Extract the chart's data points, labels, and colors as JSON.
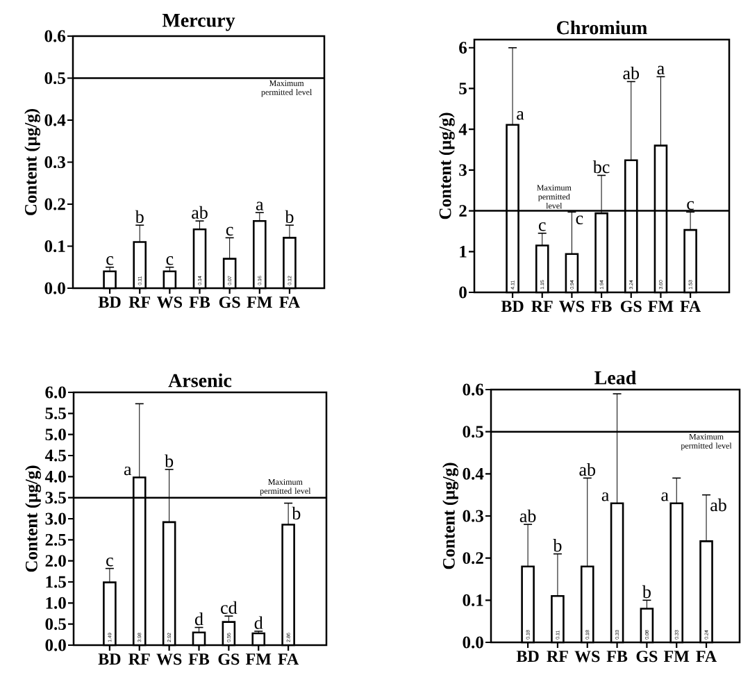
{
  "chart_data": [
    {
      "type": "bar",
      "title": "Mercury",
      "ylabel": "Content (μg/g)",
      "categories": [
        "BD",
        "RF",
        "WS",
        "FB",
        "GS",
        "FM",
        "FA"
      ],
      "color": "#ffffff",
      "values": [
        0.04,
        0.11,
        0.04,
        0.14,
        0.07,
        0.16,
        0.12
      ],
      "errors": [
        [
          0.04,
          0.05
        ],
        [
          0.11,
          0.15
        ],
        [
          0.04,
          0.05
        ],
        [
          0.14,
          0.16
        ],
        [
          0.07,
          0.12
        ],
        [
          0.16,
          0.18
        ],
        [
          0.12,
          0.15
        ]
      ],
      "value_labels": [
        null,
        "0.11",
        null,
        "0.14",
        "0.07",
        "0.16",
        "0.12"
      ],
      "ylim": [
        0,
        0.6
      ],
      "yticks": [
        {
          "value": 0,
          "label": "0.0"
        },
        0.1,
        0.2,
        0.3,
        0.4,
        0.5,
        0.6
      ],
      "ref_lines": [
        {
          "axis": "y",
          "value": 0.5,
          "label": "Maximum permitted level"
        }
      ],
      "annotations": [
        "c",
        "b",
        "c",
        "ab",
        "c",
        "a",
        "b"
      ]
    },
    {
      "type": "bar",
      "title": "Chromium",
      "ylabel": "Content (μg/g)",
      "categories": [
        "BD",
        "RF",
        "WS",
        "FB",
        "GS",
        "FM",
        "FA"
      ],
      "color": "#ffffff",
      "values": [
        4.11,
        1.15,
        0.94,
        1.94,
        3.24,
        3.6,
        1.53
      ],
      "errors": [
        [
          4.11,
          6.0
        ],
        [
          1.15,
          1.45
        ],
        [
          0.94,
          1.97
        ],
        [
          1.94,
          2.87
        ],
        [
          3.24,
          5.17
        ],
        [
          3.6,
          5.29
        ],
        [
          1.53,
          1.97
        ]
      ],
      "value_labels": [
        "4.11",
        "1.15",
        "0.94",
        "1.94",
        "3.24",
        "3.60",
        "1.53"
      ],
      "ylim": [
        0,
        6.2
      ],
      "yticks": [
        0,
        1,
        2,
        3,
        4,
        5,
        6
      ],
      "ref_lines": [
        {
          "axis": "y",
          "value": 2,
          "label": "Maximum permitted level"
        }
      ],
      "annotations": [
        "a",
        "c",
        "c",
        "bc",
        "ab",
        "a",
        "c"
      ]
    },
    {
      "type": "bar",
      "title": "Arsenic",
      "ylabel": "Content (μg/g)",
      "categories": [
        "BD",
        "RF",
        "WS",
        "FB",
        "GS",
        "FM",
        "FA"
      ],
      "color": "#ffffff",
      "values": [
        1.49,
        3.98,
        2.92,
        0.3,
        0.55,
        0.28,
        2.86
      ],
      "errors": [
        [
          1.49,
          1.82
        ],
        [
          3.98,
          5.73
        ],
        [
          2.92,
          4.17
        ],
        [
          0.3,
          0.42
        ],
        [
          0.55,
          0.69
        ],
        [
          0.28,
          0.33
        ],
        [
          2.86,
          3.37
        ]
      ],
      "value_labels": [
        "1.49",
        "3.98",
        "2.92",
        null,
        "0.55",
        null,
        "2.86"
      ],
      "ylim": [
        0,
        6
      ],
      "yticks": [
        {
          "value": 0,
          "label": "0.0"
        },
        0.5,
        {
          "value": 1,
          "label": "1.0"
        },
        1.5,
        {
          "value": 2,
          "label": "2.0"
        },
        2.5,
        {
          "value": 3,
          "label": "3.0"
        },
        3.5,
        {
          "value": 4,
          "label": "4.0"
        },
        4.5,
        {
          "value": 5,
          "label": "5.0"
        },
        5.5,
        {
          "value": 6,
          "label": "6.0"
        }
      ],
      "ref_lines": [
        {
          "axis": "y",
          "value": 3.5,
          "label": "Maximum permitted level"
        }
      ],
      "annotations": [
        "c",
        "a",
        "b",
        "d",
        "cd",
        "d",
        "b"
      ]
    },
    {
      "type": "bar",
      "title": "Lead",
      "ylabel": "Content (μg/g)",
      "categories": [
        "BD",
        "RF",
        "WS",
        "FB",
        "GS",
        "FM",
        "FA"
      ],
      "color": "#ffffff",
      "values": [
        0.18,
        0.11,
        0.18,
        0.33,
        0.08,
        0.33,
        0.24
      ],
      "errors": [
        [
          0.18,
          0.28
        ],
        [
          0.11,
          0.21
        ],
        [
          0.18,
          0.39
        ],
        [
          0.33,
          0.59
        ],
        [
          0.08,
          0.1
        ],
        [
          0.33,
          0.39
        ],
        [
          0.24,
          0.35
        ]
      ],
      "value_labels": [
        "0.18",
        "0.11",
        "0.18",
        "0.33",
        "0.08",
        "0.33",
        "0.24"
      ],
      "ylim": [
        0,
        0.6
      ],
      "yticks": [
        {
          "value": 0,
          "label": "0.0"
        },
        0.1,
        0.2,
        0.3,
        0.4,
        0.5,
        0.6
      ],
      "ref_lines": [
        {
          "axis": "y",
          "value": 0.5,
          "label": "Maximum permitted level"
        }
      ],
      "annotations": [
        "ab",
        "b",
        "ab",
        "a",
        "b",
        "a",
        "ab"
      ]
    }
  ]
}
